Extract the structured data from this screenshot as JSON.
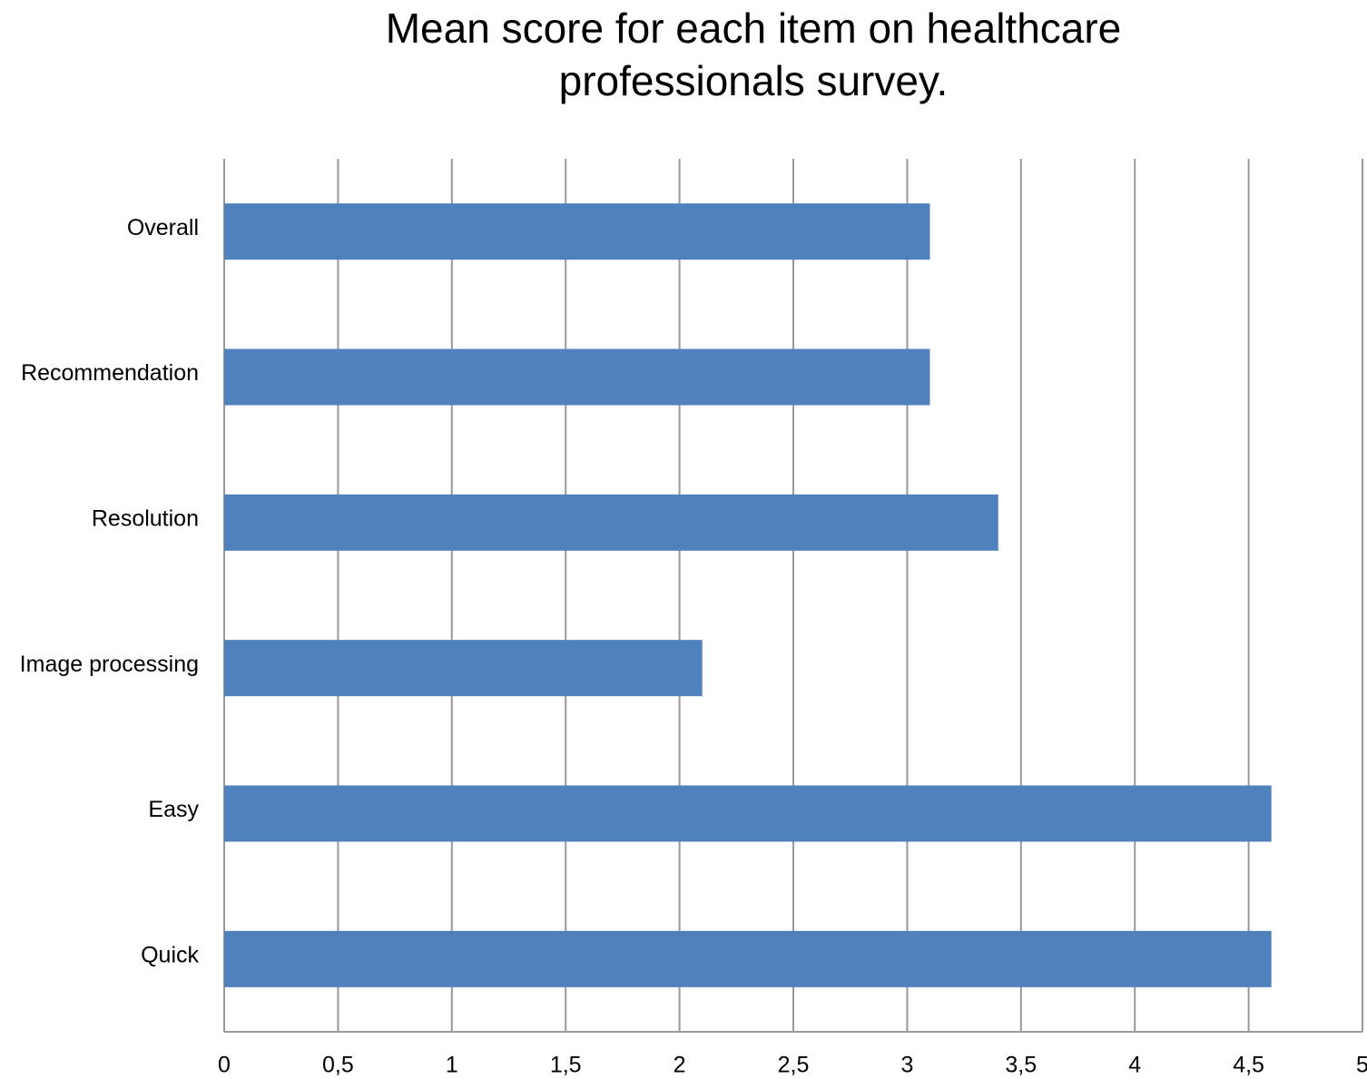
{
  "chart_data": {
    "type": "bar",
    "orientation": "horizontal",
    "title": "Mean score for each item on healthcare professionals survey.",
    "categories": [
      "Overall",
      "Recommendation",
      "Resolution",
      "Image processing",
      "Easy",
      "Quick"
    ],
    "values": [
      3.1,
      3.1,
      3.4,
      2.1,
      4.6,
      4.6
    ],
    "color": "#4f81bd",
    "xlim": [
      0,
      5
    ],
    "xticks": [
      0,
      {
        "value": 0.5,
        "label": "0,5"
      },
      1,
      {
        "value": 1.5,
        "label": "1,5"
      },
      2,
      {
        "value": 2.5,
        "label": "2,5"
      },
      3,
      {
        "value": 3.5,
        "label": "3,5"
      },
      4,
      {
        "value": 4.5,
        "label": "4,5"
      },
      5
    ],
    "grid": true
  }
}
